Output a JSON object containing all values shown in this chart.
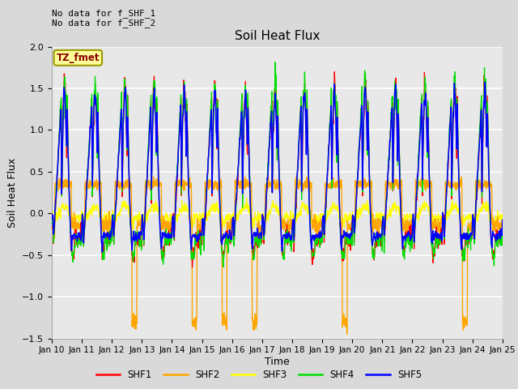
{
  "title": "Soil Heat Flux",
  "xlabel": "Time",
  "ylabel": "Soil Heat Flux",
  "ylim": [
    -1.5,
    2.0
  ],
  "yticks": [
    -1.5,
    -1.0,
    -0.5,
    0.0,
    0.5,
    1.0,
    1.5,
    2.0
  ],
  "xtick_labels": [
    "Jan 10",
    "Jan 11",
    "Jan 12",
    "Jan 13",
    "Jan 14",
    "Jan 15",
    "Jan 16",
    "Jan 17",
    "Jan 18",
    "Jan 19",
    "Jan 20",
    "Jan 21",
    "Jan 22",
    "Jan 23",
    "Jan 24",
    "Jan 25"
  ],
  "colors": {
    "SHF1": "#ff0000",
    "SHF2": "#ffa500",
    "SHF3": "#ffff00",
    "SHF4": "#00dd00",
    "SHF5": "#0000ff"
  },
  "annotation_text": "No data for f_SHF_1\nNo data for f_SHF_2",
  "legend_label": "TZ_fmet",
  "legend_box_color": "#ffff99",
  "legend_box_edge": "#999900",
  "background_color": "#d9d9d9",
  "plot_bg_color": "#e8e8e8",
  "grid_color": "#ffffff",
  "n_points": 2000,
  "days": 15
}
